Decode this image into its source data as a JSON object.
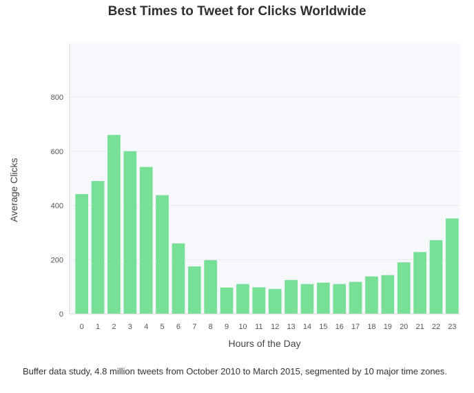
{
  "chart_data": {
    "type": "bar",
    "title": "Best Times to Tweet for Clicks Worldwide",
    "xlabel": "Hours of the Day",
    "ylabel": "Average Clicks",
    "categories": [
      "0",
      "1",
      "2",
      "3",
      "4",
      "5",
      "6",
      "7",
      "8",
      "9",
      "10",
      "11",
      "12",
      "13",
      "14",
      "15",
      "16",
      "17",
      "18",
      "19",
      "20",
      "21",
      "22",
      "23"
    ],
    "values": [
      442,
      490,
      660,
      600,
      542,
      438,
      260,
      175,
      198,
      97,
      110,
      98,
      92,
      125,
      110,
      115,
      110,
      118,
      138,
      143,
      190,
      228,
      272,
      352
    ],
    "ylim": [
      0,
      990
    ],
    "yticks": [
      0,
      200,
      400,
      600,
      800
    ],
    "grid": true,
    "bar_color": "#78df96"
  },
  "caption": "Buffer data study, 4.8 million tweets from October 2010 to March 2015, segmented by 10 major time zones."
}
